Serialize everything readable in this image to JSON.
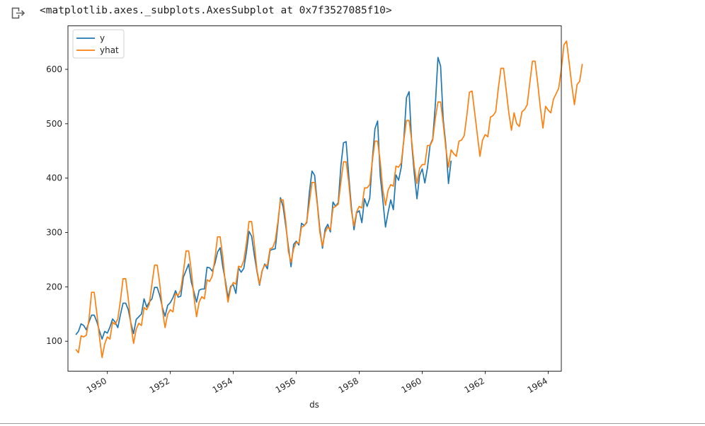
{
  "cell": {
    "output_text": "<matplotlib.axes._subplots.AxesSubplot at 0x7f3527085f10>",
    "output_icon": "output-arrow-icon"
  },
  "chart_data": {
    "type": "line",
    "xlabel": "ds",
    "ylabel": "",
    "title": "",
    "x_axis_type": "date",
    "xlim": [
      "1948-10-01",
      "1964-06-01"
    ],
    "ylim": [
      45,
      680
    ],
    "xticks": [
      "1950",
      "1952",
      "1954",
      "1956",
      "1958",
      "1960",
      "1962",
      "1964"
    ],
    "yticks": [
      100,
      200,
      300,
      400,
      500,
      600
    ],
    "grid": false,
    "legend": "upper left",
    "series": [
      {
        "name": "y",
        "color": "#1f77b4",
        "x_start": "1949-01",
        "frequency": "monthly",
        "values": [
          112,
          118,
          132,
          129,
          121,
          135,
          148,
          148,
          136,
          119,
          104,
          118,
          115,
          126,
          141,
          135,
          125,
          149,
          170,
          170,
          158,
          133,
          114,
          140,
          145,
          150,
          178,
          163,
          172,
          178,
          199,
          199,
          184,
          162,
          146,
          166,
          171,
          180,
          193,
          181,
          183,
          218,
          230,
          242,
          209,
          191,
          172,
          194,
          196,
          196,
          236,
          235,
          229,
          243,
          264,
          272,
          237,
          211,
          180,
          201,
          204,
          188,
          235,
          227,
          234,
          264,
          302,
          293,
          259,
          229,
          203,
          229,
          242,
          233,
          267,
          269,
          270,
          315,
          364,
          347,
          312,
          274,
          237,
          278,
          284,
          277,
          317,
          313,
          318,
          374,
          413,
          405,
          355,
          306,
          271,
          306,
          315,
          301,
          356,
          348,
          355,
          422,
          465,
          467,
          404,
          347,
          305,
          336,
          340,
          318,
          362,
          348,
          363,
          435,
          491,
          505,
          404,
          359,
          310,
          337,
          360,
          342,
          406,
          396,
          420,
          472,
          548,
          559,
          463,
          407,
          362,
          405,
          417,
          391,
          419,
          461,
          472,
          535,
          622,
          606,
          508,
          461,
          390,
          432
        ]
      },
      {
        "name": "yhat",
        "color": "#ff7f0e",
        "x_start": "1949-01",
        "frequency": "monthly",
        "values": [
          85,
          79,
          110,
          108,
          111,
          140,
          190,
          190,
          152,
          108,
          70,
          95,
          108,
          104,
          135,
          131,
          141,
          175,
          215,
          215,
          178,
          130,
          96,
          122,
          133,
          129,
          162,
          158,
          168,
          205,
          240,
          240,
          205,
          158,
          125,
          150,
          158,
          154,
          188,
          184,
          195,
          228,
          266,
          266,
          230,
          182,
          145,
          172,
          182,
          178,
          213,
          210,
          220,
          252,
          292,
          292,
          255,
          205,
          172,
          198,
          208,
          205,
          238,
          236,
          248,
          280,
          320,
          320,
          280,
          232,
          205,
          230,
          240,
          240,
          270,
          272,
          285,
          320,
          360,
          360,
          320,
          265,
          245,
          270,
          282,
          280,
          310,
          312,
          320,
          355,
          392,
          392,
          352,
          300,
          275,
          300,
          310,
          305,
          345,
          348,
          352,
          392,
          430,
          430,
          392,
          340,
          312,
          338,
          348,
          345,
          382,
          382,
          388,
          432,
          468,
          468,
          430,
          378,
          350,
          378,
          388,
          385,
          422,
          420,
          428,
          470,
          506,
          506,
          468,
          420,
          390,
          418,
          425,
          425,
          460,
          460,
          470,
          510,
          540,
          540,
          500,
          455,
          420,
          452,
          445,
          440,
          468,
          470,
          478,
          515,
          558,
          560,
          520,
          480,
          440,
          470,
          480,
          476,
          512,
          515,
          522,
          565,
          602,
          602,
          562,
          520,
          488,
          520,
          500,
          495,
          522,
          526,
          535,
          575,
          615,
          615,
          575,
          530,
          492,
          532,
          525,
          520,
          545,
          555,
          565,
          600,
          645,
          652,
          612,
          570,
          535,
          572,
          578,
          610
        ]
      }
    ]
  }
}
